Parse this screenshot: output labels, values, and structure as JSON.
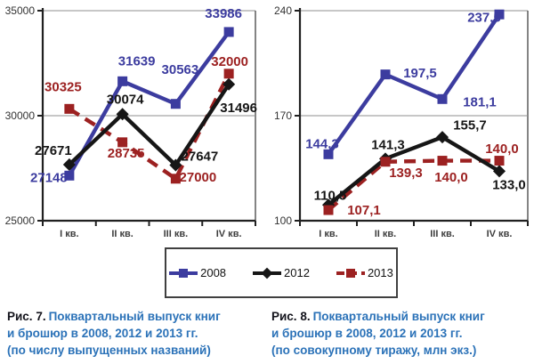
{
  "colors": {
    "accent_blue": "#3c3c9f",
    "series_black": "#161616",
    "dark_red": "#9c2121",
    "caption_blue": "#2b72b8",
    "caption_dark": "#14141c",
    "grid": "#8f8f8f",
    "plot_border": "#4f4f4f",
    "axis": "#202020",
    "ytick_text": "#333333",
    "xtick_text": "#3d3d3d",
    "legend_border": "#404040"
  },
  "legend": {
    "items": [
      {
        "label": "2008",
        "color": "#3c3c9f",
        "marker": "square",
        "dashed": false
      },
      {
        "label": "2012",
        "color": "#161616",
        "marker": "diamond",
        "dashed": false
      },
      {
        "label": "2013",
        "color": "#9c2121",
        "marker": "square",
        "dashed": true
      }
    ]
  },
  "captions": {
    "fig7": {
      "label": "Рис. 7.",
      "lines": [
        "Поквартальный выпуск книг",
        "и брошюр в 2008, 2012 и 2013 гг.",
        "(по числу выпущенных названий)"
      ]
    },
    "fig8": {
      "label": "Рис. 8.",
      "lines": [
        "Поквартальный выпуск книг",
        "и брошюр в 2008, 2012 и 2013 гг.",
        "(по совокупному тиражу, млн экз.)"
      ]
    }
  },
  "chart_data": [
    {
      "type": "line",
      "title": "Поквартальный выпуск книг и брошюр в 2008, 2012 и 2013 гг. (по числу выпущенных названий)",
      "categories": [
        "I кв.",
        "II кв.",
        "III кв.",
        "IV кв."
      ],
      "xlabel": "",
      "ylabel": "",
      "ylim": [
        25000,
        35000
      ],
      "yticks": [
        25000,
        30000,
        35000
      ],
      "ytick_labels": [
        "25000",
        "30000",
        "35000"
      ],
      "grid": true,
      "legend_position": "shared-bottom",
      "series": [
        {
          "name": "2008",
          "color": "#3c3c9f",
          "marker": "square",
          "dashed": false,
          "values": [
            27148,
            31639,
            30563,
            33986
          ],
          "point_labels": [
            "27148",
            "31639",
            "30563",
            "33986"
          ],
          "label_offsets": [
            [
              -23,
              2
            ],
            [
              16,
              -23
            ],
            [
              5,
              -39
            ],
            [
              -6,
              -21
            ]
          ]
        },
        {
          "name": "2012",
          "color": "#161616",
          "marker": "diamond",
          "dashed": false,
          "values": [
            27671,
            30074,
            27647,
            31496
          ],
          "point_labels": [
            "27671",
            "30074",
            "27647",
            "31496"
          ],
          "label_offsets": [
            [
              -18,
              -16
            ],
            [
              3,
              -17
            ],
            [
              27,
              -10
            ],
            [
              11,
              26
            ]
          ]
        },
        {
          "name": "2013",
          "color": "#9c2121",
          "marker": "square",
          "dashed": true,
          "values": [
            30325,
            28735,
            27000,
            32000
          ],
          "point_labels": [
            "30325",
            "28735",
            "27000",
            "32000"
          ],
          "label_offsets": [
            [
              -7,
              -25
            ],
            [
              4,
              12
            ],
            [
              25,
              -2
            ],
            [
              1,
              -14
            ]
          ]
        }
      ]
    },
    {
      "type": "line",
      "title": "Поквартальный выпуск книг и брошюр в 2008, 2012 и 2013 гг. (по совокупному тиражу, млн экз.)",
      "categories": [
        "I кв.",
        "II кв.",
        "III кв.",
        "IV кв."
      ],
      "xlabel": "",
      "ylabel": "",
      "ylim": [
        100,
        240
      ],
      "yticks": [
        100,
        170,
        240
      ],
      "ytick_labels": [
        "100",
        "170",
        "240"
      ],
      "grid": true,
      "legend_position": "shared-bottom",
      "series": [
        {
          "name": "2008",
          "color": "#3c3c9f",
          "marker": "square",
          "dashed": false,
          "values": [
            144.3,
            197.5,
            181.1,
            237.5
          ],
          "point_labels": [
            "144,3",
            "197,5",
            "181,1",
            "237,5"
          ],
          "label_offsets": [
            [
              -7,
              -12
            ],
            [
              39,
              -2
            ],
            [
              42,
              3
            ],
            [
              -17,
              3
            ]
          ]
        },
        {
          "name": "2012",
          "color": "#161616",
          "marker": "diamond",
          "dashed": false,
          "values": [
            110.5,
            141.3,
            155.7,
            133.0
          ],
          "point_labels": [
            "110,5",
            "141,3",
            "155,7",
            "133,0"
          ],
          "label_offsets": [
            [
              2,
              -11
            ],
            [
              3,
              -16
            ],
            [
              31,
              -14
            ],
            [
              11,
              15
            ]
          ]
        },
        {
          "name": "2013",
          "color": "#9c2121",
          "marker": "square",
          "dashed": true,
          "values": [
            107.1,
            139.3,
            140.0,
            140.0
          ],
          "point_labels": [
            "107,1",
            "139,3",
            "140,0",
            "140,0"
          ],
          "label_offsets": [
            [
              40,
              0
            ],
            [
              23,
              12
            ],
            [
              10,
              18
            ],
            [
              3,
              -14
            ]
          ]
        }
      ]
    }
  ]
}
